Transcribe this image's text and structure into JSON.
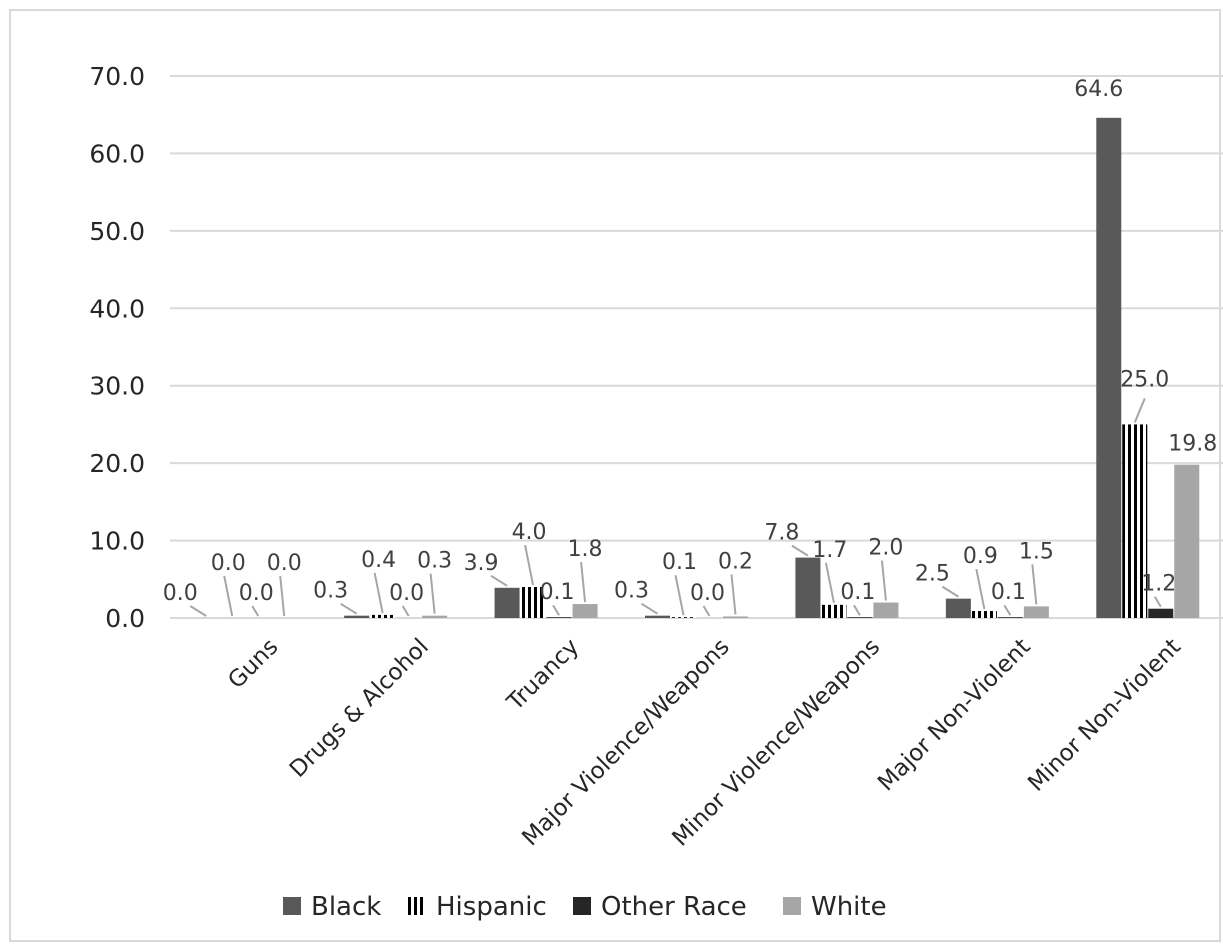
{
  "chart_data": {
    "type": "bar",
    "title": "",
    "xlabel": "",
    "ylabel": "",
    "ylim": [
      0,
      70
    ],
    "ytick_labels": [
      "0.0",
      "10.0",
      "20.0",
      "30.0",
      "40.0",
      "50.0",
      "60.0",
      "70.0"
    ],
    "grid": true,
    "legend_position": "bottom",
    "categories": [
      "Guns",
      "Drugs & Alcohol",
      "Truancy",
      "Major Violence/Weapons",
      "Minor Violence/Weapons",
      "Major Non-Violent",
      "Minor Non-Violent"
    ],
    "series": [
      {
        "name": "Black",
        "color": "#595959",
        "pattern": "solid",
        "values": [
          0.0,
          0.3,
          3.9,
          0.3,
          7.8,
          2.5,
          64.6
        ],
        "labels": [
          "0.0",
          "0.3",
          "3.9",
          "0.3",
          "7.8",
          "2.5",
          "64.6"
        ]
      },
      {
        "name": "Hispanic",
        "color": "#000000",
        "pattern": "vertical-stripes",
        "values": [
          0.0,
          0.4,
          4.0,
          0.1,
          1.7,
          0.9,
          25.0
        ],
        "labels": [
          "0.0",
          "0.4",
          "4.0",
          "0.1",
          "1.7",
          "0.9",
          "25.0"
        ]
      },
      {
        "name": "Other Race",
        "color": "#262626",
        "pattern": "solid",
        "values": [
          0.0,
          0.0,
          0.1,
          0.0,
          0.1,
          0.1,
          1.2
        ],
        "labels": [
          "0.0",
          "0.0",
          "0.1",
          "0.0",
          "0.1",
          "0.1",
          "1.2"
        ]
      },
      {
        "name": "White",
        "color": "#a6a6a6",
        "pattern": "solid",
        "values": [
          0.0,
          0.3,
          1.8,
          0.2,
          2.0,
          1.5,
          19.8
        ],
        "labels": [
          "0.0",
          "0.3",
          "1.8",
          "0.2",
          "2.0",
          "1.5",
          "19.8"
        ]
      }
    ]
  }
}
